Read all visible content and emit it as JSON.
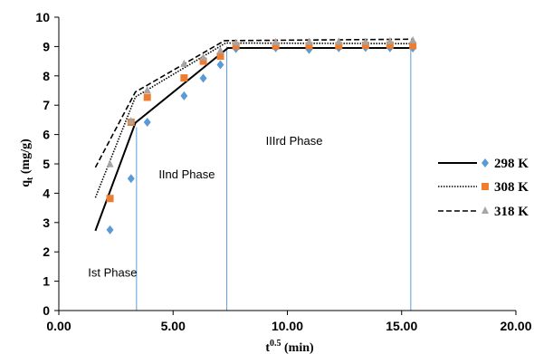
{
  "chart_data": {
    "type": "scatter",
    "title": "",
    "xlabel": "t",
    "xlabel_sup": "0.5",
    "xlabel_unit": " (min)",
    "ylabel": "q",
    "ylabel_sub": "t",
    "ylabel_unit": "(mg/g)",
    "xlim": [
      0,
      20
    ],
    "ylim": [
      0,
      10
    ],
    "x_ticks": [
      0,
      5,
      10,
      15,
      20
    ],
    "x_tick_labels": [
      "0.00",
      "5.00",
      "10.00",
      "15.00",
      "20.00"
    ],
    "y_ticks": [
      0,
      1,
      2,
      3,
      4,
      5,
      6,
      7,
      8,
      9,
      10
    ],
    "y_tick_labels": [
      "0",
      "1",
      "2",
      "3",
      "4",
      "5",
      "6",
      "7",
      "8",
      "9",
      "10"
    ],
    "grid": false,
    "legend_position": "right",
    "phase_boundaries_x": [
      3.4,
      7.35,
      15.4
    ],
    "phase_labels": [
      {
        "text": "Ist  Phase",
        "x": 2.35,
        "y": 1.15
      },
      {
        "text": "IInd  Phase",
        "x": 5.6,
        "y": 4.5
      },
      {
        "text": "IIIrd  Phase",
        "x": 10.3,
        "y": 5.65
      }
    ],
    "series": [
      {
        "name": "298 K",
        "marker": "diamond",
        "color": "#5B9BD5",
        "line_style": "solid",
        "points": [
          [
            2.24,
            2.75
          ],
          [
            3.16,
            4.5
          ],
          [
            3.87,
            6.42
          ],
          [
            5.48,
            7.32
          ],
          [
            6.32,
            7.92
          ],
          [
            7.07,
            8.38
          ],
          [
            7.75,
            8.93
          ],
          [
            9.49,
            8.96
          ],
          [
            10.95,
            8.9
          ],
          [
            12.25,
            8.96
          ],
          [
            13.42,
            8.97
          ],
          [
            14.49,
            8.96
          ],
          [
            15.49,
            8.95
          ]
        ],
        "fit": [
          [
            1.6,
            2.72
          ],
          [
            3.35,
            6.4
          ],
          [
            7.4,
            8.95
          ],
          [
            15.5,
            8.95
          ]
        ]
      },
      {
        "name": "308 K",
        "marker": "square",
        "color": "#ED7D31",
        "line_style": "dotted",
        "points": [
          [
            2.24,
            3.82
          ],
          [
            3.16,
            6.42
          ],
          [
            3.87,
            7.27
          ],
          [
            5.48,
            7.93
          ],
          [
            6.32,
            8.5
          ],
          [
            7.07,
            8.67
          ],
          [
            7.75,
            9.02
          ],
          [
            9.49,
            9.02
          ],
          [
            10.95,
            9.03
          ],
          [
            12.25,
            9.03
          ],
          [
            13.42,
            9.04
          ],
          [
            14.49,
            9.05
          ],
          [
            15.49,
            9.03
          ]
        ],
        "fit": [
          [
            1.6,
            3.85
          ],
          [
            3.35,
            7.28
          ],
          [
            7.3,
            9.12
          ],
          [
            15.5,
            9.1
          ]
        ]
      },
      {
        "name": "318 K",
        "marker": "triangle",
        "color": "#A5A5A5",
        "line_style": "dashed",
        "points": [
          [
            2.24,
            4.98
          ],
          [
            3.16,
            6.45
          ],
          [
            3.87,
            7.5
          ],
          [
            5.48,
            8.4
          ],
          [
            6.32,
            8.62
          ],
          [
            7.07,
            8.85
          ],
          [
            7.75,
            9.12
          ],
          [
            9.49,
            9.14
          ],
          [
            10.95,
            9.15
          ],
          [
            12.25,
            9.16
          ],
          [
            13.42,
            9.15
          ],
          [
            14.49,
            9.17
          ],
          [
            15.49,
            9.2
          ]
        ],
        "fit": [
          [
            1.6,
            4.88
          ],
          [
            3.35,
            7.45
          ],
          [
            7.25,
            9.2
          ],
          [
            15.5,
            9.25
          ]
        ]
      }
    ]
  }
}
